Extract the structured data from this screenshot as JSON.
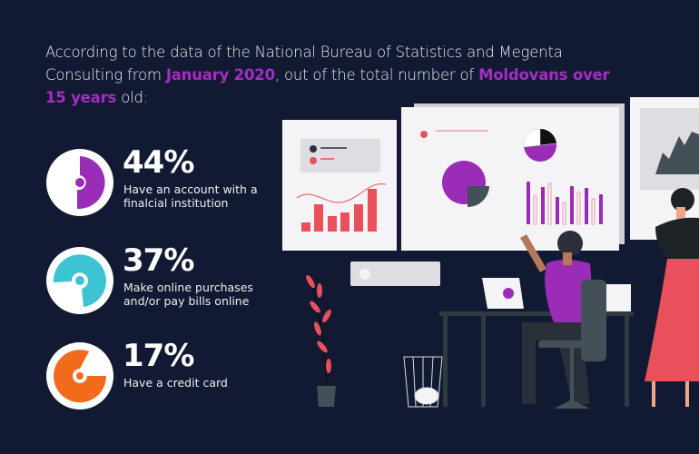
{
  "intro": {
    "text_1": "According to the data of the National Bureau of Statistics and Megenta Consulting from ",
    "highlight_1": "January 2020",
    "text_2": ", out of the total number of ",
    "highlight_2": "Moldovans over 15 years",
    "text_3": " old:"
  },
  "stats": [
    {
      "value": "44%",
      "label": "Have an account with a finalcial institution",
      "color": "#9b2cb8",
      "icon": "pie-icon"
    },
    {
      "value": "37%",
      "label": "Make online purchases and/or pay bills online",
      "color": "#3cc3d4",
      "icon": "pie-icon"
    },
    {
      "value": "17%",
      "label": "Have a credit card",
      "color": "#f26a1b",
      "icon": "pie-icon"
    }
  ],
  "colors": {
    "background": "#121a33",
    "accent": "#a52dc2",
    "red": "#e8505b",
    "board": "#f4f4f6"
  }
}
